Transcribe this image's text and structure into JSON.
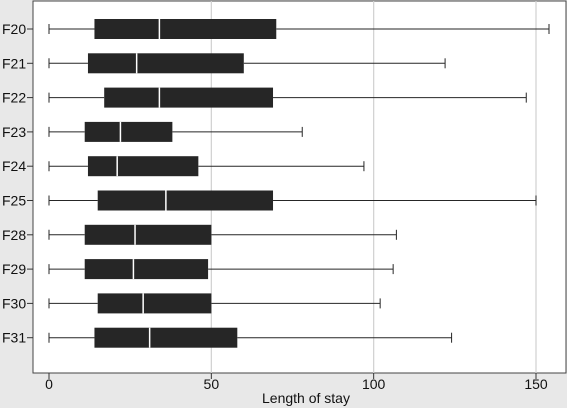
{
  "chart_data": {
    "type": "boxplot",
    "orientation": "horizontal",
    "title": "",
    "xlabel": "Length of stay",
    "ylabel": "",
    "xlim": [
      0,
      160
    ],
    "xticks": [
      0,
      50,
      100,
      150
    ],
    "grid": "vertical",
    "categories": [
      "F20",
      "F21",
      "F22",
      "F23",
      "F24",
      "F25",
      "F28",
      "F29",
      "F30",
      "F31"
    ],
    "boxes": [
      {
        "min": 0,
        "q1": 14,
        "median": 34,
        "q3": 70,
        "max": 154
      },
      {
        "min": 0,
        "q1": 12,
        "median": 27,
        "q3": 60,
        "max": 122
      },
      {
        "min": 0,
        "q1": 17,
        "median": 34,
        "q3": 69,
        "max": 147
      },
      {
        "min": 0,
        "q1": 11,
        "median": 22,
        "q3": 38,
        "max": 78
      },
      {
        "min": 0,
        "q1": 12,
        "median": 21,
        "q3": 46,
        "max": 97
      },
      {
        "min": 0,
        "q1": 15,
        "median": 36,
        "q3": 69,
        "max": 150
      },
      {
        "min": 0,
        "q1": 11,
        "median": 26.5,
        "q3": 50,
        "max": 107
      },
      {
        "min": 0,
        "q1": 11,
        "median": 26,
        "q3": 49,
        "max": 106
      },
      {
        "min": 0,
        "q1": 15,
        "median": 29,
        "q3": 50,
        "max": 102
      },
      {
        "min": 0,
        "q1": 14,
        "median": 31,
        "q3": 58,
        "max": 124
      }
    ],
    "colors": {
      "box": "#262626",
      "median": "#ffffff",
      "whisker": "#262626",
      "grid": "#d0d0d0",
      "plot_bg": "#ffffff",
      "frame_bg": "#e8e8e8"
    }
  }
}
